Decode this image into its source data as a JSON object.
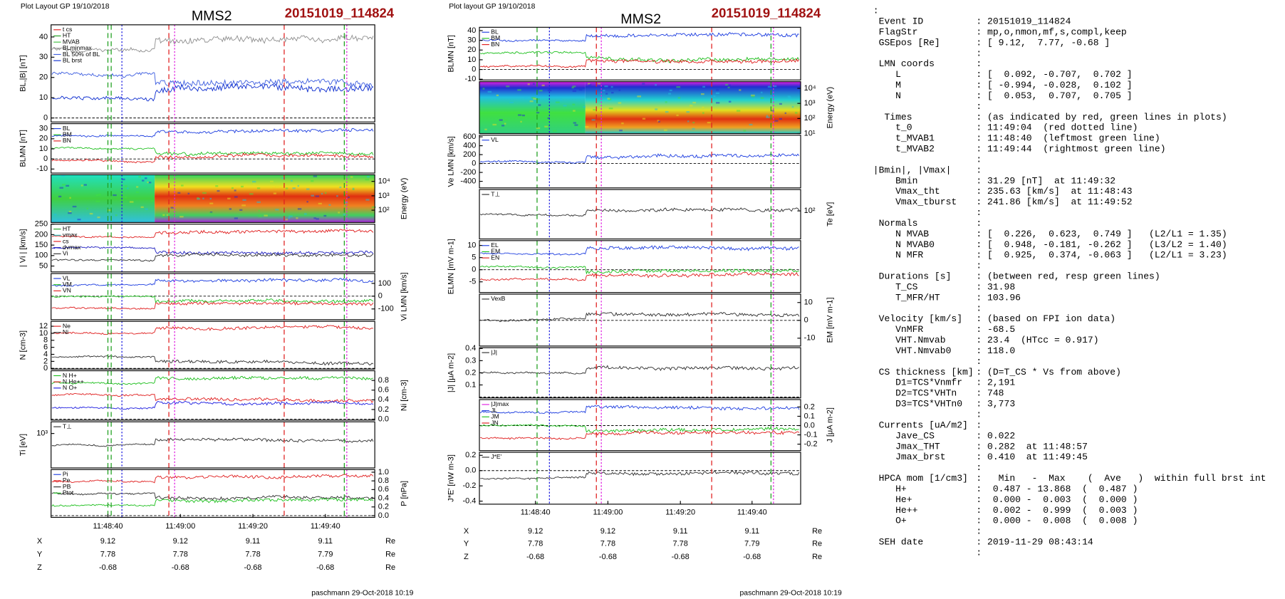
{
  "left": {
    "layout_note": "Plot Layout GP 19/10/2018",
    "title": "MMS2",
    "event": "20151019_114824",
    "panels": [
      {
        "label": "BL,|B| [nT]",
        "side": "left",
        "ylim": [
          -2,
          46
        ],
        "ticks": [
          0,
          10,
          20,
          30,
          40
        ],
        "legend": [
          {
            "name": "t cs",
            "color": "#e02020"
          },
          {
            "name": "HT",
            "color": "#20a020"
          },
          {
            "name": "MVAB",
            "color": "#40c040"
          },
          {
            "name": "BLminmax",
            "color": "#909090"
          },
          {
            "name": "BL 50% of BL",
            "color": "#4060e0"
          },
          {
            "name": "BL brst",
            "color": "#1030d0"
          }
        ]
      },
      {
        "label": "BLMN [nT]",
        "side": "left",
        "ylim": [
          -14,
          35
        ],
        "ticks": [
          -10,
          0,
          10,
          20,
          30
        ],
        "legend": [
          {
            "name": "BL",
            "color": "#2040e0"
          },
          {
            "name": "BM",
            "color": "#20c020"
          },
          {
            "name": "BN",
            "color": "#e02020"
          }
        ]
      },
      {
        "label": "Energy (eV)",
        "side": "right",
        "kind": "spectrogram",
        "log": true,
        "ylim": [
          14,
          29000
        ],
        "ticks": [
          {
            "value": 100,
            "label": "10²"
          },
          {
            "value": 1000,
            "label": "10³"
          },
          {
            "value": 10000,
            "label": "10⁴"
          }
        ]
      },
      {
        "label": "| Vi | [km/s]",
        "side": "left",
        "ylim": [
          22,
          250
        ],
        "ticks": [
          50,
          100,
          150,
          200,
          250
        ],
        "legend": [
          {
            "name": "HT",
            "color": "#20a020"
          },
          {
            "name": "vmax",
            "color": "#20c0c0"
          },
          {
            "name": "cs",
            "color": "#e02020"
          },
          {
            "name": "dvmax",
            "color": "#2020c0"
          },
          {
            "name": "Vi",
            "color": "#303030"
          }
        ]
      },
      {
        "label": "Vi LMN [km/s]",
        "side": "right",
        "ylim": [
          -184,
          177
        ],
        "ticks": [
          -100,
          0,
          100
        ],
        "legend": [
          {
            "name": "VL",
            "color": "#2040e0"
          },
          {
            "name": "VM",
            "color": "#20c020"
          },
          {
            "name": "VN",
            "color": "#e02020"
          }
        ]
      },
      {
        "label": "N [cm-3]",
        "side": "left",
        "ylim": [
          -0.2,
          13.4
        ],
        "ticks": [
          0,
          2,
          4,
          6,
          8,
          10,
          12
        ],
        "legend": [
          {
            "name": "Ne",
            "color": "#e02020"
          },
          {
            "name": "Ni",
            "color": "#303030"
          }
        ]
      },
      {
        "label": "Ni [cm-3]",
        "side": "right",
        "ylim": [
          -0.02,
          1.0
        ],
        "ticks": [
          {
            "value": 0,
            "label": "0.0"
          },
          0.2,
          0.4,
          0.6,
          0.8
        ],
        "legend": [
          {
            "name": "N H+",
            "color": "#20c020"
          },
          {
            "name": "N He++",
            "color": "#e02020"
          },
          {
            "name": "N O+",
            "color": "#2020e0"
          }
        ]
      },
      {
        "label": "Ti [eV]",
        "side": "left",
        "log": true,
        "ylim": [
          250,
          1600
        ],
        "ticks": [
          {
            "value": 1000,
            "label": "10³"
          }
        ],
        "legend": [
          {
            "name": "T⊥",
            "color": "#303030"
          }
        ]
      },
      {
        "label": "P [nPa]",
        "side": "right",
        "ylim": [
          -0.04,
          1.06
        ],
        "ticks": [
          {
            "value": 0,
            "label": "0.0"
          },
          0.2,
          0.4,
          0.6,
          0.8,
          {
            "value": 1,
            "label": "1.0"
          }
        ],
        "legend": [
          {
            "name": "Pi",
            "color": "#2040e0"
          },
          {
            "name": "Pe",
            "color": "#e02020"
          },
          {
            "name": "PB",
            "color": "#303030"
          },
          {
            "name": "Ptot",
            "color": "#20c020"
          }
        ]
      }
    ],
    "time_labels": [
      "11:48:40",
      "11:49:00",
      "11:49:20",
      "11:49:40"
    ],
    "ephemeris": [
      {
        "axis": "X",
        "values": [
          9.12,
          9.12,
          9.11,
          9.11
        ],
        "unit": "Re"
      },
      {
        "axis": "Y",
        "values": [
          7.78,
          7.78,
          7.78,
          7.79
        ],
        "unit": "Re"
      },
      {
        "axis": "Z",
        "values": [
          -0.68,
          -0.68,
          -0.68,
          -0.68
        ],
        "unit": "Re"
      }
    ],
    "footer": "paschmann 29-Oct-2018 10:19"
  },
  "right": {
    "layout_note": "Plot layout GP 19/10/2018",
    "title": "MMS2",
    "event": "20151019_114824",
    "panels": [
      {
        "label": "BLMN [nT]",
        "side": "left",
        "ylim": [
          -10.8,
          43.4
        ],
        "ticks": [
          -10,
          0,
          10,
          20,
          30,
          40
        ],
        "legend": [
          {
            "name": "BL",
            "color": "#2040e0"
          },
          {
            "name": "BM",
            "color": "#20c020"
          },
          {
            "name": "BN",
            "color": "#e02020"
          }
        ]
      },
      {
        "label": "Energy (eV)",
        "side": "right",
        "kind": "spectrogram",
        "log": true,
        "ylim": [
          10,
          27800
        ],
        "ticks": [
          {
            "value": 10,
            "label": "10¹"
          },
          {
            "value": 100,
            "label": "10²"
          },
          {
            "value": 1000,
            "label": "10³"
          },
          {
            "value": 10000,
            "label": "10⁴"
          }
        ]
      },
      {
        "label": "Ve LMN [km/s]",
        "side": "left",
        "ylim": [
          -548,
          637
        ],
        "ticks": [
          -400,
          -200,
          0,
          200,
          400,
          600
        ],
        "legend": [
          {
            "name": "VL",
            "color": "#2040e0"
          }
        ]
      },
      {
        "label": "Te [eV]",
        "side": "right",
        "log": true,
        "ylim": [
          30,
          250
        ],
        "ticks": [
          {
            "value": 100,
            "label": "10²"
          }
        ],
        "legend": [
          {
            "name": "T⊥",
            "color": "#303030"
          }
        ]
      },
      {
        "label": "ELMN [mV m-1]",
        "side": "left",
        "ylim": [
          -9.4,
          12
        ],
        "ticks": [
          -5,
          0,
          5,
          10
        ],
        "legend": [
          {
            "name": "EL",
            "color": "#2040e0"
          },
          {
            "name": "EM",
            "color": "#20c020"
          },
          {
            "name": "EN",
            "color": "#e02020"
          }
        ]
      },
      {
        "label": "EM [mV m-1]",
        "side": "right",
        "ylim": [
          -14.4,
          14.7
        ],
        "ticks": [
          -10,
          0,
          10
        ],
        "legend": [
          {
            "name": "VexB",
            "color": "#303030"
          }
        ]
      },
      {
        "label": "|J| [μA m-2]",
        "side": "left",
        "ylim": [
          -0.007,
          0.407
        ],
        "ticks": [
          0.1,
          0.2,
          0.3,
          0.4
        ],
        "legend": [
          {
            "name": "|J|",
            "color": "#303030"
          }
        ]
      },
      {
        "label": "J [μA m-2]",
        "side": "right",
        "ylim": [
          -0.27,
          0.28
        ],
        "ticks": [
          -0.2,
          -0.1,
          {
            "value": 0,
            "label": "0.0"
          },
          0.1,
          0.2
        ],
        "legend": [
          {
            "name": "|J|max",
            "color": "#e020e0"
          },
          {
            "name": "JL",
            "color": "#2040e0"
          },
          {
            "name": "JM",
            "color": "#20c020"
          },
          {
            "name": "JN",
            "color": "#e02020"
          }
        ]
      },
      {
        "label": "J*E' [nW m-3]",
        "side": "left",
        "ylim": [
          -0.44,
          0.24
        ],
        "ticks": [
          -0.4,
          -0.2,
          {
            "value": 0,
            "label": "0.0"
          },
          0.2
        ],
        "legend": [
          {
            "name": "J*E'",
            "color": "#303030"
          }
        ]
      }
    ],
    "time_labels": [
      "11:48:40",
      "11:49:00",
      "11:49:20",
      "11:49:40"
    ],
    "ephemeris": [
      {
        "axis": "X",
        "values": [
          9.12,
          9.12,
          9.11,
          9.11
        ],
        "unit": "Re"
      },
      {
        "axis": "Y",
        "values": [
          7.78,
          7.78,
          7.78,
          7.79
        ],
        "unit": "Re"
      },
      {
        "axis": "Z",
        "values": [
          -0.68,
          -0.68,
          -0.68,
          -0.68
        ],
        "unit": "Re"
      }
    ],
    "footer": "paschmann 29-Oct-2018 10:19"
  },
  "listing": [
    {
      "key": ":"
    },
    {
      "key": " Event ID",
      "value": ": 20151019_114824"
    },
    {
      "key": " FlagStr",
      "value": ": mp,o,nmon,mf,s,compl,keep"
    },
    {
      "key": " GSEpos [Re]",
      "value": ": [ 9.12,  7.77, -0.68 ]"
    },
    {
      "value": ":"
    },
    {
      "key": " LMN coords",
      "value": ":"
    },
    {
      "key": "    L",
      "value": ": [  0.092, -0.707,  0.702 ]"
    },
    {
      "key": "    M",
      "value": ": [ -0.994, -0.028,  0.102 ]"
    },
    {
      "key": "    N",
      "value": ": [  0.053,  0.707,  0.705 ]"
    },
    {
      "value": ":"
    },
    {
      "key": "  Times",
      "value": ": (as indicated by red, green lines in plots)"
    },
    {
      "key": "    t_0",
      "value": ": 11:49:04  (red dotted line)"
    },
    {
      "key": "    t_MVAB1",
      "value": ": 11:48:40  (leftmost green line)"
    },
    {
      "key": "    t_MVAB2",
      "value": ": 11:49:44  (rightmost green line)"
    },
    {
      "value": ":"
    },
    {
      "key": "|Bmin|, |Vmax|",
      "value": ":"
    },
    {
      "key": "    Bmin",
      "value": ": 31.29 [nT]  at 11:49:32"
    },
    {
      "key": "    Vmax_tht",
      "value": ": 235.63 [km/s]  at 11:48:43"
    },
    {
      "key": "    Vmax_tburst",
      "value": ": 241.86 [km/s]  at 11:49:52"
    },
    {
      "value": ":"
    },
    {
      "key": " Normals",
      "value": ":"
    },
    {
      "key": "    N MVAB",
      "value": ": [  0.226,  0.623,  0.749 ]   (L2/L1 = 1.35)"
    },
    {
      "key": "    N MVAB0",
      "value": ": [  0.948, -0.181, -0.262 ]   (L3/L2 = 1.40)"
    },
    {
      "key": "    N MFR",
      "value": ": [  0.925,  0.374, -0.063 ]   (L2/L1 = 3.23)"
    },
    {
      "value": ":"
    },
    {
      "key": " Durations [s]",
      "value": ": (between red, resp green lines)"
    },
    {
      "key": "    T_CS",
      "value": ": 31.98"
    },
    {
      "key": "    T_MFR/HT",
      "value": ": 103.96"
    },
    {
      "value": ":"
    },
    {
      "key": " Velocity [km/s]",
      "value": ": (based on FPI ion data)"
    },
    {
      "key": "    VnMFR",
      "value": ": -68.5"
    },
    {
      "key": "    VHT.Nmvab",
      "value": ": 23.4  (HTcc = 0.917)"
    },
    {
      "key": "    VHT.Nmvab0",
      "value": ": 118.0"
    },
    {
      "value": ":"
    },
    {
      "key": " CS thickness [km]",
      "value": ": (D=T_CS * Vs from above)"
    },
    {
      "key": "    D1=TCS*Vnmfr",
      "value": ": 2,191"
    },
    {
      "key": "    D2=TCS*VHTn",
      "value": ": 748"
    },
    {
      "key": "    D3=TCS*VHTn0",
      "value": ": 3,773"
    },
    {
      "value": ":"
    },
    {
      "key": " Currents [uA/m2]",
      "value": ":"
    },
    {
      "key": "    Jave_CS",
      "value": ": 0.022"
    },
    {
      "key": "    Jmax_THT",
      "value": ": 0.282  at 11:48:57"
    },
    {
      "key": "    Jmax_brst",
      "value": ": 0.410  at 11:49:45"
    },
    {
      "value": ":"
    },
    {
      "key": " HPCA mom [1/cm3]",
      "value": ":   Min   -  Max    (  Ave   )  within full brst int"
    },
    {
      "key": "    H+",
      "value": ":  0.487 - 13.868  (  0.487 )"
    },
    {
      "key": "    He+",
      "value": ":  0.000 -  0.003  (  0.000 )"
    },
    {
      "key": "    He++",
      "value": ":  0.002 -  0.999  (  0.003 )"
    },
    {
      "key": "    O+",
      "value": ":  0.000 -  0.008  (  0.008 )"
    },
    {
      "value": ":"
    },
    {
      "key": " SEH date",
      "value": ": 2019-11-29 08:43:14"
    },
    {
      "value": ":"
    }
  ]
}
